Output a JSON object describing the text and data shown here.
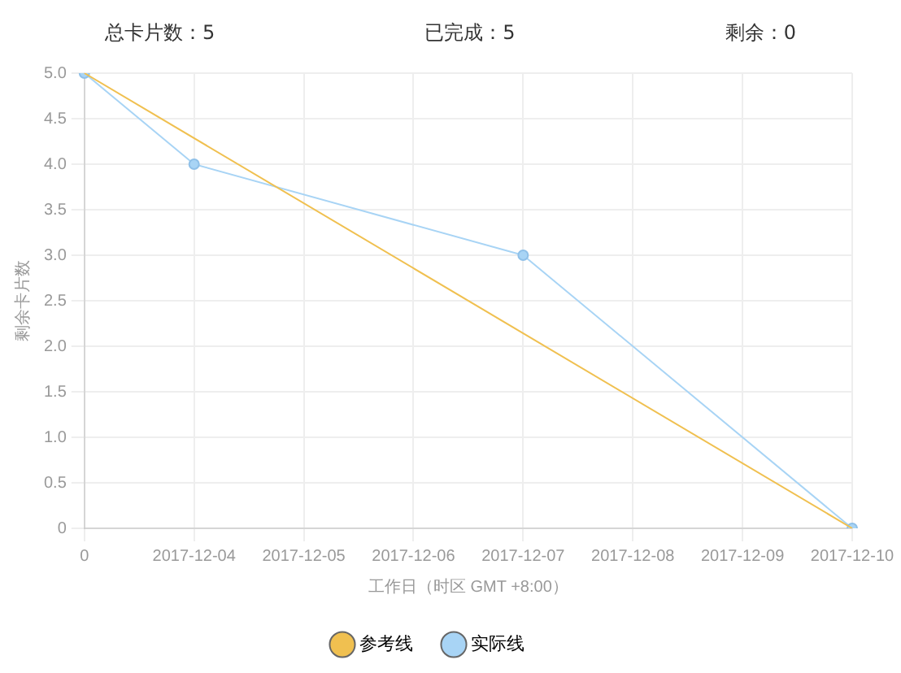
{
  "chart_data": {
    "type": "line",
    "ylabel": "剩余卡片数",
    "xlabel": "工作日（时区 GMT +8:00）",
    "annotations": [
      "总卡片数：5",
      "已完成：5",
      "剩余：0"
    ],
    "categories": [
      "0",
      "2017-12-04",
      "2017-12-05",
      "2017-12-06",
      "2017-12-07",
      "2017-12-08",
      "2017-12-09",
      "2017-12-10"
    ],
    "series": [
      {
        "name": "参考线",
        "color": "#f0c050",
        "marker": "none",
        "values": [
          5,
          null,
          null,
          null,
          null,
          null,
          null,
          0
        ]
      },
      {
        "name": "实际线",
        "color": "#a8d4f5",
        "marker": "circle",
        "values": [
          5,
          4,
          null,
          null,
          3,
          null,
          null,
          0
        ]
      }
    ],
    "ylim": [
      0,
      5
    ],
    "yticks": [
      0,
      0.5,
      {
        "value": 1,
        "label": "1.0"
      },
      1.5,
      {
        "value": 2,
        "label": "2.0"
      },
      2.5,
      {
        "value": 3,
        "label": "3.0"
      },
      3.5,
      {
        "value": 4,
        "label": "4.0"
      },
      4.5,
      {
        "value": 5,
        "label": "5.0"
      }
    ],
    "grid": true,
    "legend": "bottom"
  }
}
